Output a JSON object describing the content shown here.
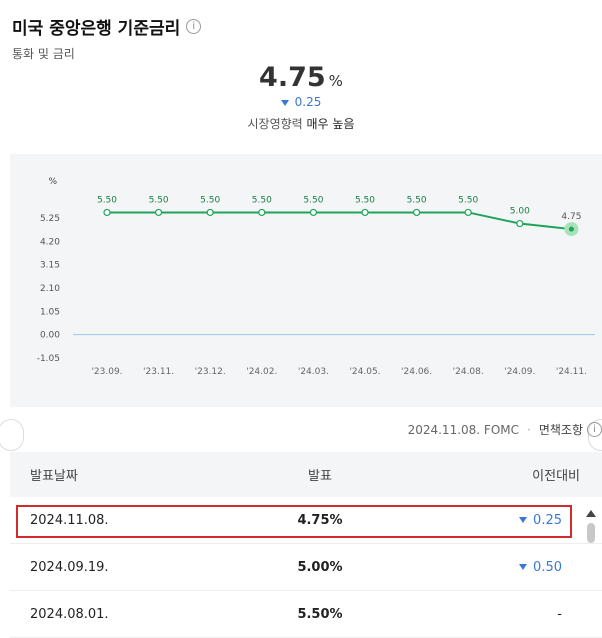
{
  "header": {
    "title": "미국 중앙은행 기준금리",
    "subtitle": "통화 및 금리"
  },
  "summary": {
    "value": "4.75",
    "unit": "%",
    "change": "0.25",
    "influence_label": "시장영향력",
    "influence_value": "매우 높음"
  },
  "chart_data": {
    "type": "line",
    "ylabel": "%",
    "y_ticks": [
      "5.25",
      "4.20",
      "3.15",
      "2.10",
      "1.05",
      "0.00",
      "-1.05"
    ],
    "x": [
      "'23.09.",
      "'23.11.",
      "'23.12.",
      "'24.02.",
      "'24.03.",
      "'24.05.",
      "'24.06.",
      "'24.08.",
      "'24.09.",
      "'24.11."
    ],
    "values": [
      5.5,
      5.5,
      5.5,
      5.5,
      5.5,
      5.5,
      5.5,
      5.5,
      5.0,
      4.75
    ],
    "point_labels": [
      "5.50",
      "5.50",
      "5.50",
      "5.50",
      "5.50",
      "5.50",
      "5.50",
      "5.50",
      "5.00",
      "4.75"
    ],
    "ylim": [
      -1.05,
      5.25
    ],
    "line_color": "#1fa35b",
    "zero_line_color": "#9fc3ec"
  },
  "source": {
    "date_meeting": "2024.11.08. FOMC",
    "policy": "면책조항"
  },
  "table": {
    "headers": {
      "date": "발표날짜",
      "rate": "발표",
      "change": "이전대비"
    },
    "rows": [
      {
        "date": "2024.11.08.",
        "rate": "4.75%",
        "change": "0.25",
        "dir": "down"
      },
      {
        "date": "2024.09.19.",
        "rate": "5.00%",
        "change": "0.50",
        "dir": "down"
      },
      {
        "date": "2024.08.01.",
        "rate": "5.50%",
        "change": "-",
        "dir": "none"
      }
    ]
  },
  "colors": {
    "accent_blue": "#3a78d6",
    "highlight_red": "#d32b2b"
  }
}
